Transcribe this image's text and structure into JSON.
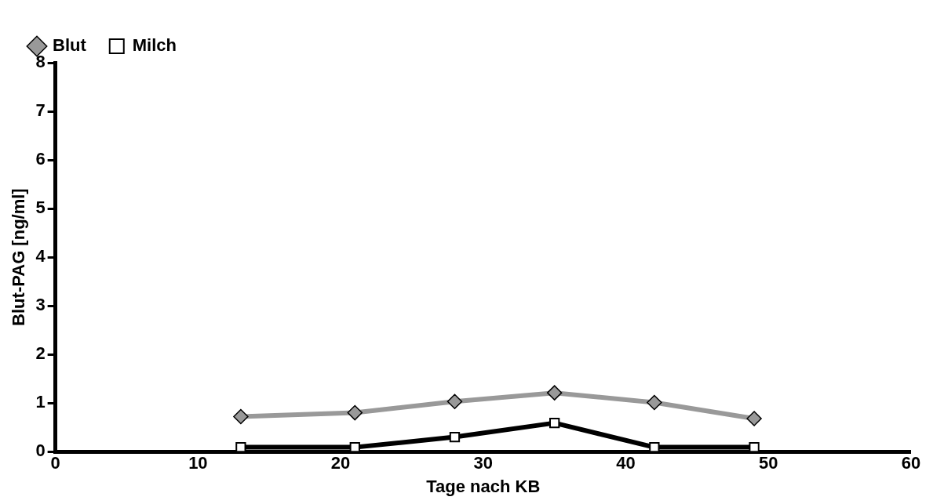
{
  "chart_data": {
    "type": "line",
    "xlabel": "Tage nach KB",
    "ylabel": "Blut-PAG [ng/ml]",
    "xlim": [
      0,
      60
    ],
    "xticks": [
      0,
      10,
      20,
      30,
      40,
      50,
      60
    ],
    "ylim": [
      0,
      8
    ],
    "yticks": [
      0,
      1,
      2,
      3,
      4,
      5,
      6,
      7,
      8
    ],
    "grid": false,
    "legend": "top left",
    "line_style": "solid",
    "series": [
      {
        "name": "Blut",
        "color": "#999999",
        "marker": "diamond",
        "x": [
          13,
          21,
          28,
          35,
          42,
          49
        ],
        "values": [
          0.72,
          0.8,
          1.03,
          1.21,
          1.01,
          0.68
        ]
      },
      {
        "name": "Milch",
        "color": "#000000",
        "marker": "square",
        "x": [
          13,
          21,
          28,
          35,
          42,
          49
        ],
        "values": [
          0.09,
          0.09,
          0.3,
          0.59,
          0.09,
          0.09
        ]
      }
    ]
  }
}
